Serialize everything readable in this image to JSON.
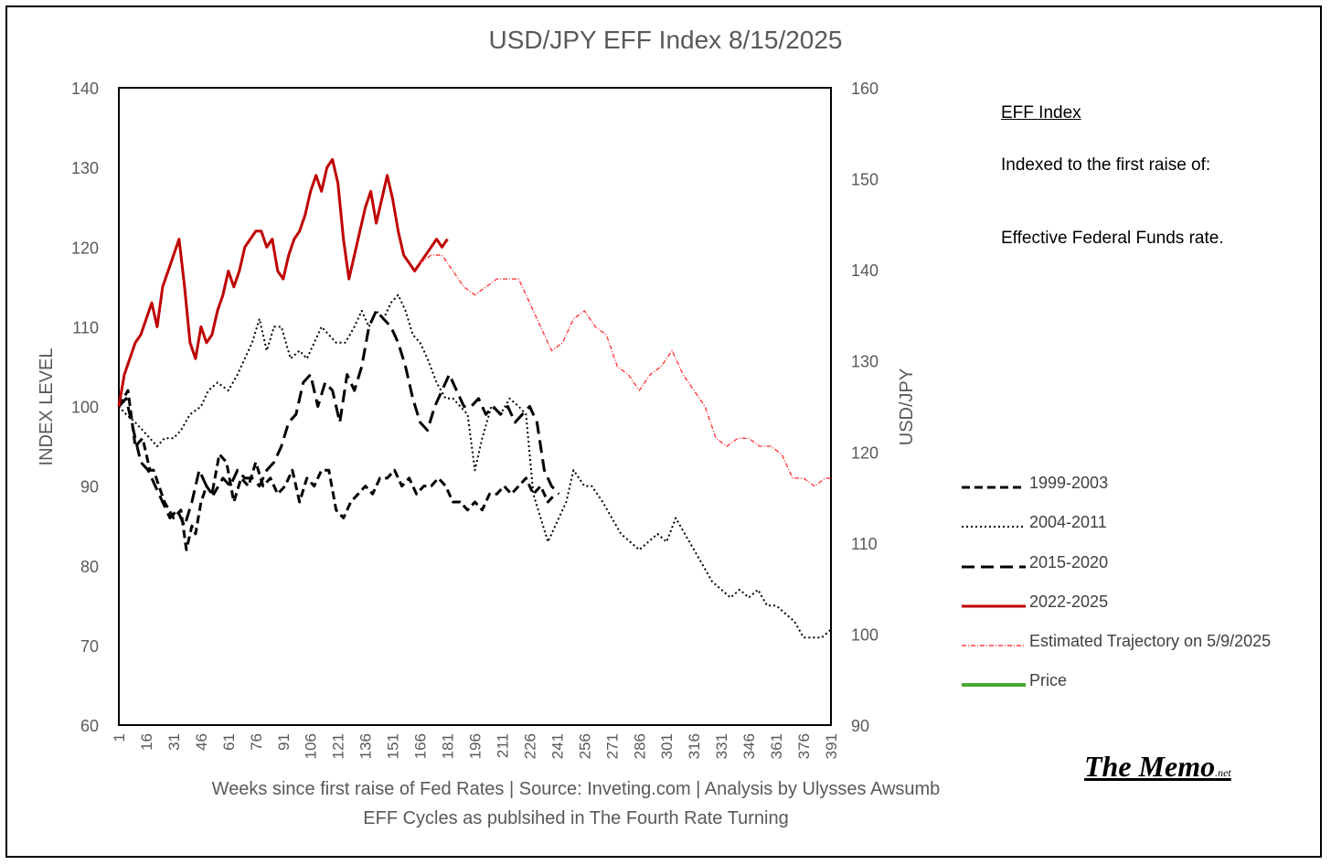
{
  "chart_data": {
    "type": "line",
    "title": "USD/JPY EFF Index 8/15/2025",
    "ylabel": "INDEX LEVEL",
    "y2label": "USD/JPY",
    "ylim": [
      60,
      140
    ],
    "y2lim": [
      90,
      160
    ],
    "yticks": [
      "60",
      "70",
      "80",
      "90",
      "100",
      "110",
      "120",
      "130",
      "140"
    ],
    "y2ticks": [
      "90",
      "100",
      "110",
      "120",
      "130",
      "140",
      "150",
      "160"
    ],
    "xlim": [
      1,
      391
    ],
    "xticks": [
      "1",
      "16",
      "31",
      "46",
      "61",
      "76",
      "91",
      "106",
      "121",
      "136",
      "151",
      "166",
      "181",
      "196",
      "211",
      "226",
      "241",
      "256",
      "271",
      "286",
      "301",
      "316",
      "331",
      "346",
      "361",
      "376",
      "391"
    ],
    "grid": false,
    "legend_position": "right",
    "series": [
      {
        "name": "1999-2003",
        "color": "#000000",
        "dash": "9,5",
        "width": 3,
        "x": [
          1,
          6,
          10,
          14,
          18,
          20,
          26,
          31,
          35,
          38,
          41,
          43,
          46,
          49,
          52,
          56,
          60,
          64,
          68,
          72,
          76,
          80,
          84,
          88,
          92,
          96,
          100,
          104,
          108,
          112,
          116,
          120,
          124,
          128,
          132,
          136,
          140,
          144,
          148,
          152,
          156,
          160,
          164,
          168,
          172,
          176,
          180,
          184,
          188,
          192,
          196,
          200,
          204,
          208,
          212,
          216,
          220,
          224,
          228,
          232,
          236,
          240
        ],
        "y": [
          100,
          102,
          95,
          96,
          92,
          92,
          88,
          86,
          87,
          82,
          85,
          84,
          88,
          90,
          89,
          94,
          93,
          88,
          91,
          90,
          93,
          90,
          91,
          89,
          90,
          92,
          88,
          91,
          90,
          92,
          92,
          87,
          86,
          88,
          89,
          90,
          89,
          91,
          91,
          92,
          90,
          91,
          89,
          90,
          90,
          91,
          90,
          88,
          88,
          87,
          88,
          87,
          89,
          89,
          90,
          89,
          90,
          91,
          89,
          90,
          88,
          89
        ]
      },
      {
        "name": "2004-2011",
        "color": "#000000",
        "dash": "2,3",
        "width": 2,
        "x": [
          1,
          5,
          10,
          14,
          18,
          22,
          26,
          31,
          35,
          40,
          46,
          50,
          55,
          61,
          66,
          70,
          74,
          78,
          82,
          86,
          90,
          95,
          100,
          104,
          108,
          112,
          116,
          120,
          125,
          130,
          134,
          138,
          142,
          146,
          150,
          154,
          158,
          162,
          166,
          170,
          175,
          180,
          184,
          188,
          192,
          196,
          200,
          205,
          210,
          215,
          220,
          224,
          228,
          232,
          236,
          240,
          246,
          250,
          256,
          260,
          266,
          271,
          276,
          281,
          286,
          291,
          296,
          301,
          306,
          311,
          316,
          321,
          326,
          331,
          336,
          341,
          346,
          351,
          356,
          361,
          366,
          371,
          376,
          381,
          386,
          391
        ],
        "y": [
          100,
          99,
          98,
          97,
          96,
          95,
          96,
          96,
          97,
          99,
          100,
          102,
          103,
          102,
          104,
          106,
          108,
          111,
          107,
          110,
          110,
          106,
          107,
          106,
          108,
          110,
          109,
          108,
          108,
          110,
          112,
          110,
          112,
          111,
          113,
          114,
          112,
          109,
          108,
          106,
          103,
          101,
          101,
          100,
          99,
          92,
          96,
          100,
          99,
          101,
          100,
          99,
          89,
          86,
          83,
          85,
          88,
          92,
          90,
          90,
          88,
          86,
          84,
          83,
          82,
          83,
          84,
          83,
          86,
          84,
          82,
          80,
          78,
          77,
          76,
          77,
          76,
          77,
          75,
          75,
          74,
          73,
          71,
          71,
          71,
          72
        ]
      },
      {
        "name": "2015-2020",
        "color": "#000000",
        "dash": "14,7",
        "width": 3,
        "x": [
          1,
          5,
          9,
          13,
          17,
          21,
          25,
          29,
          33,
          37,
          41,
          45,
          49,
          53,
          58,
          62,
          66,
          70,
          74,
          78,
          82,
          86,
          90,
          94,
          98,
          102,
          106,
          110,
          114,
          118,
          122,
          126,
          130,
          134,
          138,
          142,
          146,
          150,
          154,
          158,
          162,
          166,
          170,
          174,
          178,
          182,
          186,
          190,
          194,
          198,
          202,
          206,
          210,
          214,
          218,
          222,
          226,
          230,
          234,
          238,
          242
        ],
        "y": [
          100,
          101,
          97,
          93,
          92,
          90,
          88,
          86,
          87,
          85,
          88,
          92,
          90,
          89,
          91,
          90,
          92,
          91,
          91,
          90,
          92,
          93,
          95,
          98,
          99,
          103,
          104,
          100,
          103,
          102,
          98,
          104,
          102,
          105,
          110,
          112,
          111,
          110,
          108,
          105,
          101,
          98,
          97,
          100,
          102,
          104,
          102,
          100,
          100,
          101,
          99,
          100,
          99,
          100,
          98,
          99,
          100,
          98,
          92,
          90,
          89
        ]
      },
      {
        "name": "2022-2025",
        "color": "#c00000",
        "dash": "",
        "width": 3,
        "x": [
          1,
          4,
          7,
          10,
          13,
          16,
          19,
          22,
          25,
          28,
          31,
          34,
          37,
          40,
          43,
          46,
          49,
          52,
          55,
          58,
          61,
          64,
          67,
          70,
          73,
          76,
          79,
          82,
          85,
          88,
          91,
          94,
          97,
          100,
          103,
          106,
          109,
          112,
          115,
          118,
          121,
          124,
          127,
          130,
          133,
          136,
          139,
          142,
          145,
          148,
          151,
          154,
          157,
          160,
          163,
          166,
          169,
          172,
          175,
          178,
          181
        ],
        "y": [
          100,
          104,
          106,
          108,
          109,
          111,
          113,
          110,
          115,
          117,
          119,
          121,
          115,
          108,
          106,
          110,
          108,
          109,
          112,
          114,
          117,
          115,
          117,
          120,
          121,
          122,
          122,
          120,
          121,
          117,
          116,
          119,
          121,
          122,
          124,
          127,
          129,
          127,
          130,
          131,
          128,
          121,
          116,
          119,
          122,
          125,
          127,
          123,
          126,
          129,
          126,
          122,
          119,
          118,
          117,
          118,
          119,
          120,
          121,
          120,
          121
        ]
      },
      {
        "name": "Estimated Trajectory on 5/9/2025",
        "color": "#ff3b3b",
        "dash": "5,2,1,2",
        "width": 1.4,
        "x": [
          166,
          172,
          178,
          184,
          190,
          196,
          202,
          208,
          214,
          220,
          226,
          232,
          238,
          244,
          250,
          256,
          262,
          268,
          274,
          280,
          286,
          292,
          298,
          304,
          310,
          316,
          322,
          328,
          334,
          340,
          346,
          352,
          358,
          364,
          370,
          376,
          382,
          388,
          391
        ],
        "y": [
          118,
          119,
          119,
          117,
          115,
          114,
          115,
          116,
          116,
          116,
          113,
          110,
          107,
          108,
          111,
          112,
          110,
          109,
          105,
          104,
          102,
          104,
          105,
          107,
          104,
          102,
          100,
          96,
          95,
          96,
          96,
          95,
          95,
          94,
          91,
          91,
          90,
          91,
          91
        ]
      },
      {
        "name": "Price",
        "color": "#4aa832",
        "dash": "",
        "width": 4,
        "x": [],
        "y": []
      }
    ]
  },
  "side_note": {
    "title": "EFF Index",
    "desc1": "Indexed to the first raise of:",
    "desc2": "Effective Federal Funds rate."
  },
  "caption": {
    "line1": "Weeks since first raise of Fed Rates | Source: Inveting.com | Analysis by Ulysses Awsumb",
    "line2": "EFF Cycles as publsihed in The Fourth Rate Turning"
  },
  "brand": {
    "name": "The Memo",
    "suffix": ".net"
  }
}
